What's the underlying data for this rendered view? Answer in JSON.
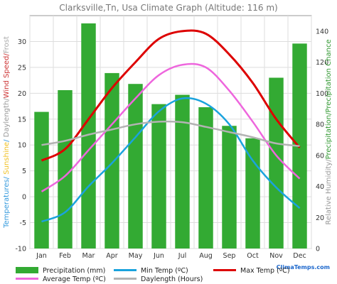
{
  "chart_data": {
    "type": "bar",
    "title": "Clarksville,Tn, Usa Climate Graph (Altitude: 116 m)",
    "categories": [
      "Jan",
      "Feb",
      "Mar",
      "Apr",
      "May",
      "Jun",
      "Jul",
      "Aug",
      "Sep",
      "Oct",
      "Nov",
      "Dec"
    ],
    "left_axis": {
      "label_parts": [
        {
          "text": "Temperatures",
          "color": "#3399dd"
        },
        {
          "text": "/ ",
          "color": "#3399dd"
        },
        {
          "text": "Sunshine",
          "color": "#f0c020"
        },
        {
          "text": "/ ",
          "color": "#3399dd"
        },
        {
          "text": "Daylength",
          "color": "#999999"
        },
        {
          "text": "/",
          "color": "#999999"
        },
        {
          "text": "Wind Speed",
          "color": "#cc3333"
        },
        {
          "text": "/",
          "color": "#cc3333"
        },
        {
          "text": "Frost",
          "color": "#aaaaaa"
        }
      ],
      "ylim": [
        -10,
        35
      ],
      "ticks": [
        -10,
        -5,
        0,
        5,
        10,
        15,
        20,
        25,
        30
      ]
    },
    "right_axis": {
      "label_parts": [
        {
          "text": "Relative Humidity",
          "color": "#999999"
        },
        {
          "text": "/",
          "color": "#999999"
        },
        {
          "text": "Precipitation",
          "color": "#339933"
        },
        {
          "text": "/",
          "color": "#339933"
        },
        {
          "text": "Precipitation Chance",
          "color": "#339933"
        }
      ],
      "ylim": [
        0,
        150
      ],
      "ticks": [
        0,
        20,
        40,
        60,
        80,
        100,
        120,
        140
      ]
    },
    "series": [
      {
        "name": "Precipitation (mm)",
        "kind": "bar",
        "axis": "right",
        "color": "#33aa33",
        "values": [
          88,
          102,
          145,
          113,
          106,
          93,
          99,
          91,
          79,
          71,
          110,
          132
        ]
      },
      {
        "name": "Min Temp (ºC)",
        "kind": "line",
        "axis": "left",
        "color": "#1aa3dd",
        "values": [
          -4.8,
          -3,
          2,
          6.5,
          11.5,
          16.5,
          19,
          18,
          14,
          7,
          1.8,
          -2.2
        ]
      },
      {
        "name": "Max Temp (ºC)",
        "kind": "line",
        "axis": "left",
        "color": "#dd0000",
        "values": [
          7,
          9.2,
          15,
          21,
          26,
          30.5,
          32,
          31.5,
          27.5,
          22,
          15,
          9.5
        ]
      },
      {
        "name": "Average Temp (ºC)",
        "kind": "line",
        "axis": "left",
        "color": "#ee66dd",
        "values": [
          1,
          4,
          9,
          14,
          19,
          23.5,
          25.5,
          25,
          20.5,
          14.5,
          8,
          3.5
        ]
      },
      {
        "name": "Daylength (Hours)",
        "kind": "line",
        "axis": "left",
        "color": "#b3b3b3",
        "values": [
          10,
          10.8,
          12,
          13,
          14,
          14.5,
          14.4,
          13.5,
          12.5,
          11.5,
          10.3,
          9.8
        ]
      }
    ],
    "grid": true,
    "watermark": "ClimaTemps.com",
    "legend_position": "bottom"
  }
}
